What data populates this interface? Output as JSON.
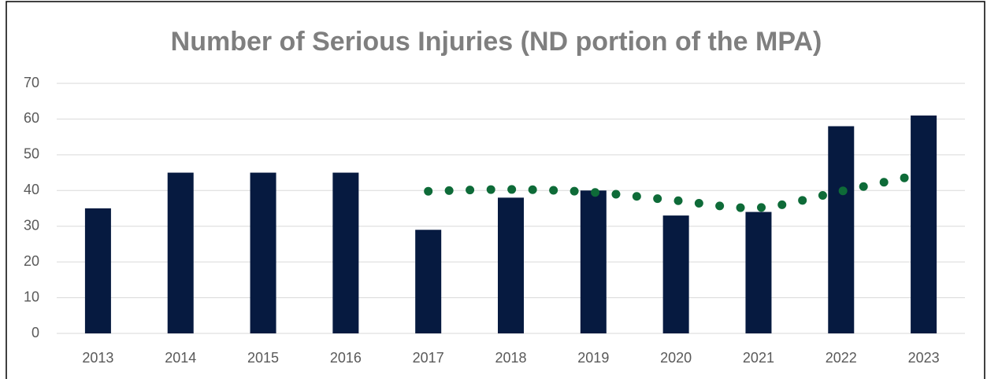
{
  "chart_data": {
    "type": "bar",
    "title": "Number of Serious Injuries (ND portion of the MPA)",
    "categories": [
      "2013",
      "2014",
      "2015",
      "2016",
      "2017",
      "2018",
      "2019",
      "2020",
      "2021",
      "2022",
      "2023"
    ],
    "series": [
      {
        "type": "bar",
        "color": "#061a40",
        "values": [
          35,
          45,
          45,
          45,
          29,
          38,
          40,
          33,
          34,
          58,
          61
        ]
      },
      {
        "type": "trend",
        "color": "#0e6b38",
        "style": "dotted",
        "values": [
          null,
          null,
          null,
          null,
          39.8,
          40.3,
          39.5,
          37.2,
          35.2,
          39.8,
          44.7
        ]
      }
    ],
    "ylim": [
      0,
      70
    ],
    "yticks": [
      0,
      10,
      20,
      30,
      40,
      50,
      60,
      70
    ],
    "grid": true
  }
}
